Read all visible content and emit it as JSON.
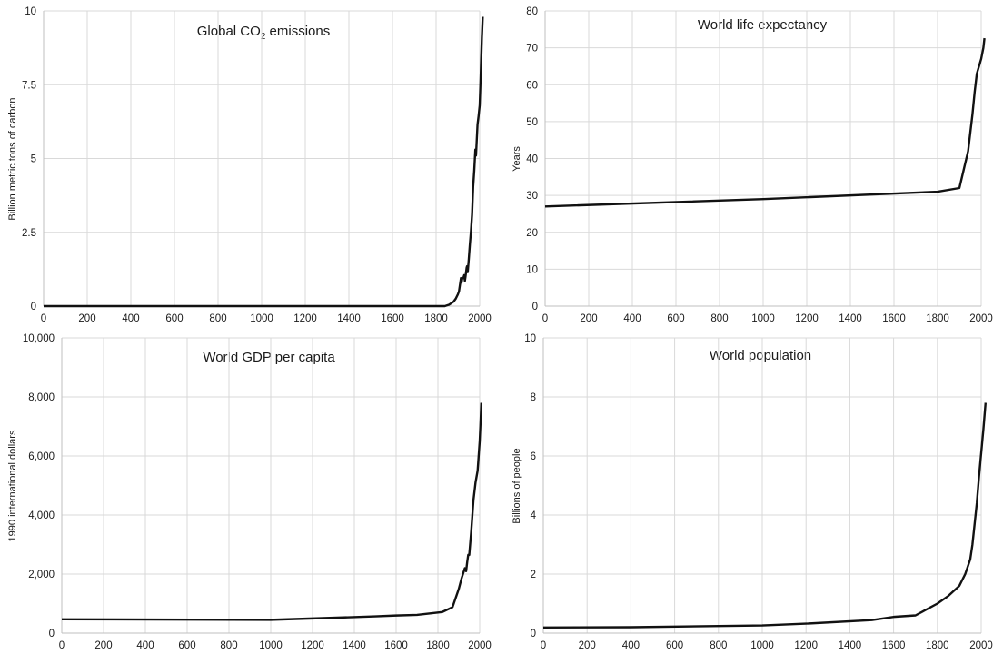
{
  "chart_data": [
    {
      "type": "line",
      "title": "Global CO",
      "title_subscript": "2",
      "title_suffix": " emissions",
      "ylabel": "Billion metric tons of carbon",
      "xlim": [
        0,
        2000
      ],
      "ylim": [
        0,
        10
      ],
      "x_ticks": [
        0,
        200,
        400,
        600,
        800,
        1000,
        1200,
        1400,
        1600,
        1800,
        2000
      ],
      "x_tick_labels": [
        "0",
        "200",
        "400",
        "600",
        "800",
        "1000",
        "1200",
        "1400",
        "1600",
        "1800",
        "2000"
      ],
      "y_ticks": [
        0,
        2.5,
        5,
        7.5,
        10
      ],
      "y_tick_labels": [
        "0",
        "2.5",
        "5",
        "7.5",
        "10"
      ],
      "grid": true,
      "series": [
        {
          "x": [
            0,
            1750,
            1840,
            1860,
            1870,
            1880,
            1890,
            1900,
            1905,
            1910,
            1914,
            1917,
            1920,
            1925,
            1929,
            1932,
            1935,
            1940,
            1942,
            1945,
            1950,
            1955,
            1960,
            1965,
            1970,
            1975,
            1980,
            1983,
            1985,
            1990,
            1995,
            2000,
            2005,
            2010,
            2014
          ],
          "y": [
            0,
            0,
            0,
            0.05,
            0.1,
            0.15,
            0.25,
            0.4,
            0.5,
            0.75,
            0.95,
            0.8,
            0.95,
            0.95,
            1.05,
            0.85,
            1.0,
            1.3,
            1.35,
            1.15,
            1.6,
            2.1,
            2.55,
            3.1,
            4.05,
            4.6,
            5.3,
            5.1,
            5.4,
            6.15,
            6.45,
            6.8,
            7.9,
            9.1,
            9.8
          ]
        }
      ]
    },
    {
      "type": "line",
      "title": "World life expectancy",
      "ylabel": "Years",
      "xlim": [
        0,
        2000
      ],
      "ylim": [
        0,
        80
      ],
      "x_ticks": [
        0,
        200,
        400,
        600,
        800,
        1000,
        1200,
        1400,
        1600,
        1800,
        2000
      ],
      "x_tick_labels": [
        "0",
        "200",
        "400",
        "600",
        "800",
        "1000",
        "1200",
        "1400",
        "1600",
        "1800",
        "2000"
      ],
      "y_ticks": [
        0,
        10,
        20,
        30,
        40,
        50,
        60,
        70,
        80
      ],
      "y_tick_labels": [
        "0",
        "10",
        "20",
        "30",
        "40",
        "50",
        "60",
        "70",
        "80"
      ],
      "grid": true,
      "series": [
        {
          "x": [
            0,
            1000,
            1800,
            1900,
            1920,
            1940,
            1950,
            1960,
            1970,
            1980,
            1990,
            2000,
            2010,
            2015
          ],
          "y": [
            27,
            29,
            31,
            32,
            37,
            42,
            47,
            52,
            58,
            63,
            65,
            67,
            70,
            72.6
          ]
        }
      ]
    },
    {
      "type": "line",
      "title": "World GDP per capita",
      "ylabel": "1990 international dollars",
      "xlim": [
        0,
        2000
      ],
      "ylim": [
        0,
        10000
      ],
      "x_ticks": [
        0,
        200,
        400,
        600,
        800,
        1000,
        1200,
        1400,
        1600,
        1800,
        2000
      ],
      "x_tick_labels": [
        "0",
        "200",
        "400",
        "600",
        "800",
        "1000",
        "1200",
        "1400",
        "1600",
        "1800",
        "2000"
      ],
      "y_ticks": [
        0,
        2000,
        4000,
        6000,
        8000,
        10000
      ],
      "y_tick_labels": [
        "0",
        "2,000",
        "4,000",
        "6,000",
        "8,000",
        "10,000"
      ],
      "grid": true,
      "series": [
        {
          "x": [
            0,
            1000,
            1500,
            1600,
            1700,
            1820,
            1870,
            1900,
            1913,
            1929,
            1935,
            1940,
            1945,
            1950,
            1960,
            1970,
            1980,
            1990,
            2000,
            2008
          ],
          "y": [
            467,
            450,
            566,
            596,
            616,
            712,
            880,
            1500,
            1850,
            2200,
            2100,
            2400,
            2650,
            2650,
            3500,
            4500,
            5100,
            5500,
            6500,
            7800
          ]
        }
      ]
    },
    {
      "type": "line",
      "title": "World population",
      "ylabel": "Billions of people",
      "xlim": [
        0,
        2000
      ],
      "ylim": [
        0,
        10
      ],
      "x_ticks": [
        0,
        200,
        400,
        600,
        800,
        1000,
        1200,
        1400,
        1600,
        1800,
        2000
      ],
      "x_tick_labels": [
        "0",
        "200",
        "400",
        "600",
        "800",
        "1000",
        "1200",
        "1400",
        "1600",
        "1800",
        "2000"
      ],
      "y_ticks": [
        0,
        2,
        4,
        6,
        8,
        10
      ],
      "y_tick_labels": [
        "0",
        "2",
        "4",
        "6",
        "8",
        "10"
      ],
      "grid": true,
      "series": [
        {
          "x": [
            0,
            400,
            1000,
            1200,
            1500,
            1600,
            1700,
            1800,
            1850,
            1900,
            1927,
            1950,
            1960,
            1970,
            1980,
            1990,
            2000,
            2010,
            2020
          ],
          "y": [
            0.19,
            0.2,
            0.26,
            0.32,
            0.44,
            0.55,
            0.6,
            1.0,
            1.26,
            1.6,
            2.0,
            2.5,
            3.0,
            3.7,
            4.4,
            5.3,
            6.1,
            6.9,
            7.8
          ]
        }
      ]
    }
  ]
}
